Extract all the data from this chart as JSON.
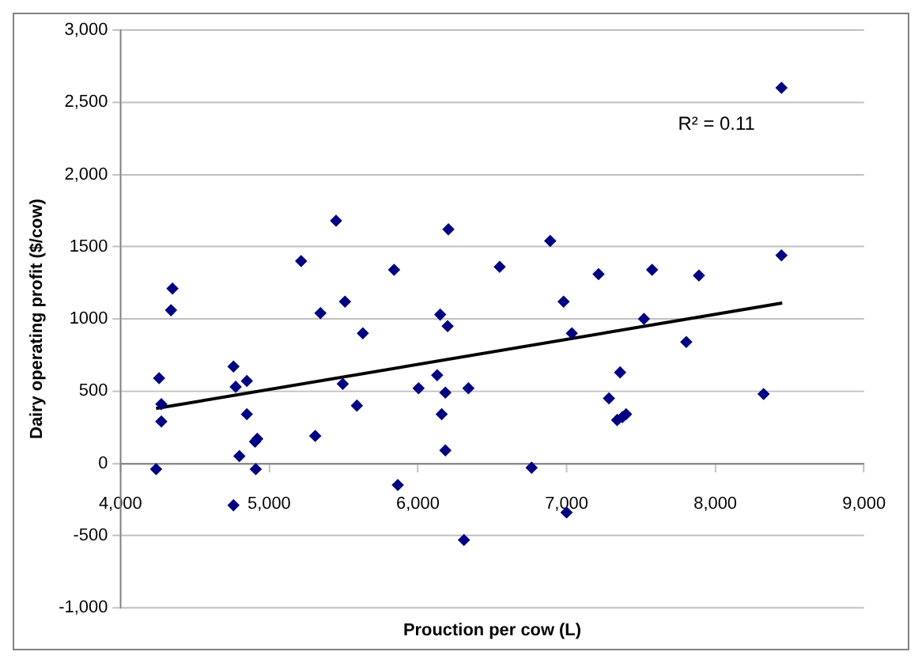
{
  "chart_data": {
    "type": "scatter",
    "xlabel": "Prouction per cow (L)",
    "ylabel": "Dairy operating profit ($/cow)",
    "annotations": [
      "R² = 0.11"
    ],
    "marker": "diamond",
    "grid": "y",
    "legend": false,
    "xlim": [
      4000,
      9000
    ],
    "xticks": [
      {
        "value": 4000,
        "label": "4,000"
      },
      {
        "value": 5000,
        "label": "5,000"
      },
      {
        "value": 6000,
        "label": "6,000"
      },
      {
        "value": 7000,
        "label": "7,000"
      },
      {
        "value": 8000,
        "label": "8,000"
      },
      {
        "value": 9000,
        "label": "9,000"
      }
    ],
    "ylim": [
      -1000,
      3000
    ],
    "yticks": [
      {
        "value": -1000,
        "label": "-1,000"
      },
      {
        "value": -500,
        "label": "-500"
      },
      0,
      500,
      1000,
      1500,
      {
        "value": 2000,
        "label": "2,000"
      },
      {
        "value": 2500,
        "label": "2,500"
      },
      {
        "value": 3000,
        "label": "3,000"
      }
    ],
    "series": [
      {
        "color": "#000080",
        "x": [
          4240,
          4260,
          4275,
          4275,
          4350,
          4340,
          4760,
          4775,
          4850,
          4850,
          4800,
          4760,
          4905,
          4920,
          4910,
          5215,
          5345,
          5310,
          5510,
          5495,
          5630,
          5590,
          5840,
          5865,
          6005,
          5450,
          6890,
          6550,
          7215,
          7575,
          7890,
          6980,
          6150,
          6200,
          7035,
          7520,
          7805,
          6130,
          6185,
          6340,
          7360,
          7285,
          7340,
          7375,
          7400,
          6160,
          6185,
          6765,
          7000,
          6310,
          8325,
          6205,
          8445,
          8445
        ],
        "values": [
          -40,
          590,
          410,
          290,
          1210,
          1060,
          670,
          530,
          570,
          340,
          50,
          -290,
          150,
          170,
          -40,
          1400,
          1040,
          190,
          1120,
          550,
          900,
          400,
          1340,
          -150,
          520,
          1680,
          1540,
          1360,
          1310,
          1340,
          1300,
          1120,
          1030,
          950,
          900,
          1000,
          840,
          610,
          490,
          520,
          630,
          450,
          300,
          320,
          340,
          340,
          90,
          -30,
          -340,
          -530,
          480,
          1620,
          2600,
          1440
        ]
      },
      {
        "type": "line",
        "color": "#000000",
        "x": [
          4240,
          8450
        ],
        "values": [
          380,
          1110
        ],
        "marker": "none"
      }
    ]
  }
}
